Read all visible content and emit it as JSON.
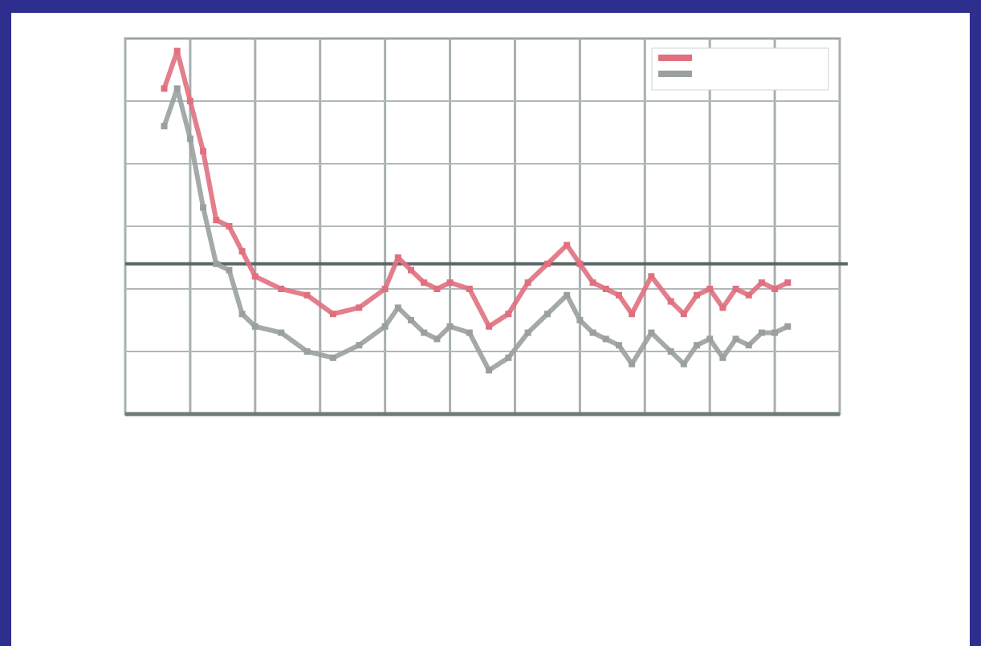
{
  "chart_data": {
    "type": "line",
    "title": "",
    "xlabel": "",
    "ylabel": "",
    "ylabel_right": "",
    "xlim": [
      0,
      11
    ],
    "ylim": [
      0,
      6
    ],
    "ylim_right": [
      0,
      10
    ],
    "grid": true,
    "legend_position": "top-right",
    "series": [
      {
        "color": "#e0707f",
        "x": [
          0.6,
          0.8,
          1.0,
          1.2,
          1.4,
          1.6,
          1.8,
          2.0,
          2.4,
          2.8,
          3.2,
          3.6,
          4.0,
          4.2,
          4.4,
          4.6,
          4.8,
          5.0,
          5.3,
          5.6,
          5.9,
          6.2,
          6.5,
          6.8,
          7.0,
          7.2,
          7.4,
          7.6,
          7.8,
          8.1,
          8.4,
          8.6,
          8.8,
          9.0,
          9.2,
          9.4,
          9.6,
          9.8,
          10.0,
          10.2
        ],
        "y": [
          5.2,
          5.8,
          5.0,
          4.2,
          3.1,
          3.0,
          2.6,
          2.2,
          2.0,
          1.9,
          1.6,
          1.7,
          2.0,
          2.5,
          2.3,
          2.1,
          2.0,
          2.1,
          2.0,
          1.4,
          1.6,
          2.1,
          2.4,
          2.7,
          2.4,
          2.1,
          2.0,
          1.9,
          1.6,
          2.2,
          1.8,
          1.6,
          1.9,
          2.0,
          1.7,
          2.0,
          1.9,
          2.1,
          2.0,
          2.1
        ]
      },
      {
        "color": "#9aa0a0",
        "x": [
          0.6,
          0.8,
          1.0,
          1.2,
          1.4,
          1.6,
          1.8,
          2.0,
          2.4,
          2.8,
          3.2,
          3.6,
          4.0,
          4.2,
          4.4,
          4.6,
          4.8,
          5.0,
          5.3,
          5.6,
          5.9,
          6.2,
          6.5,
          6.8,
          7.0,
          7.2,
          7.4,
          7.6,
          7.8,
          8.1,
          8.4,
          8.6,
          8.8,
          9.0,
          9.2,
          9.4,
          9.6,
          9.8,
          10.0,
          10.2
        ],
        "y": [
          4.6,
          5.2,
          4.4,
          3.3,
          2.4,
          2.3,
          1.6,
          1.4,
          1.3,
          1.0,
          0.9,
          1.1,
          1.4,
          1.7,
          1.5,
          1.3,
          1.2,
          1.4,
          1.3,
          0.7,
          0.9,
          1.3,
          1.6,
          1.9,
          1.5,
          1.3,
          1.2,
          1.1,
          0.8,
          1.3,
          1.0,
          0.8,
          1.1,
          1.2,
          0.9,
          1.2,
          1.1,
          1.3,
          1.3,
          1.4
        ]
      }
    ],
    "reference_line_right": 4
  }
}
